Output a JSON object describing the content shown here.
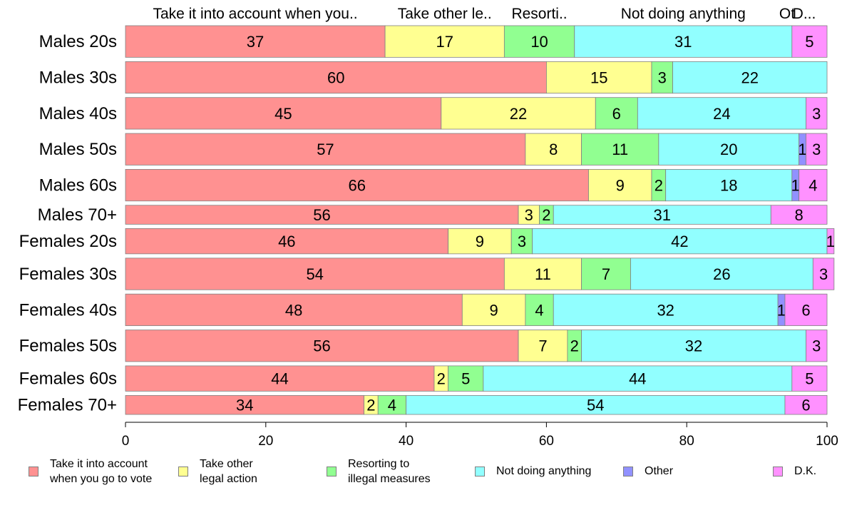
{
  "chart_data": {
    "type": "bar",
    "orientation": "horizontal",
    "stacked": true,
    "categories": [
      "Males 20s",
      "Males 30s",
      "Males 40s",
      "Males 50s",
      "Males 60s",
      "Males 70+",
      "Females 20s",
      "Females 30s",
      "Females 40s",
      "Females 50s",
      "Females 60s",
      "Females 70+"
    ],
    "series": [
      {
        "name": "Take it into account when you go to vote",
        "legend_label": "Take it into account\nwhen you go to vote",
        "top_label": "Take it into account when you..",
        "color": "#ff9191",
        "values": [
          37,
          60,
          45,
          57,
          66,
          56,
          46,
          54,
          48,
          56,
          44,
          34
        ]
      },
      {
        "name": "Take other legal action",
        "legend_label": "Take other\nlegal action",
        "top_label": "Take other le..",
        "color": "#ffff91",
        "values": [
          17,
          15,
          22,
          8,
          9,
          3,
          9,
          11,
          9,
          7,
          2,
          2
        ]
      },
      {
        "name": "Resorting to illegal measures",
        "legend_label": "Resorting to\nillegal measures",
        "top_label": "Resorti..",
        "color": "#91ff91",
        "values": [
          10,
          3,
          6,
          11,
          2,
          2,
          3,
          7,
          4,
          2,
          5,
          4
        ]
      },
      {
        "name": "Not doing anything",
        "legend_label": "Not doing anything",
        "top_label": "Not doing anything",
        "color": "#91ffff",
        "values": [
          31,
          22,
          24,
          20,
          18,
          31,
          42,
          26,
          32,
          32,
          44,
          54
        ]
      },
      {
        "name": "Other",
        "legend_label": "Other",
        "top_label": "Ot",
        "color": "#9191ff",
        "values": [
          0,
          0,
          0,
          1,
          1,
          0,
          0,
          0,
          1,
          0,
          0,
          0
        ]
      },
      {
        "name": "D.K.",
        "legend_label": "D.K.",
        "top_label": "D...",
        "color": "#ff91ff",
        "values": [
          5,
          0,
          3,
          3,
          4,
          8,
          1,
          3,
          6,
          3,
          5,
          6
        ]
      }
    ],
    "row_weights": [
      5,
      5,
      5,
      5,
      5,
      3,
      4,
      5,
      5,
      5,
      4,
      3
    ],
    "xlim": [
      0,
      100
    ],
    "xticks": [
      0,
      20,
      40,
      60,
      80,
      100
    ],
    "grid": false,
    "legend": "bottom"
  }
}
